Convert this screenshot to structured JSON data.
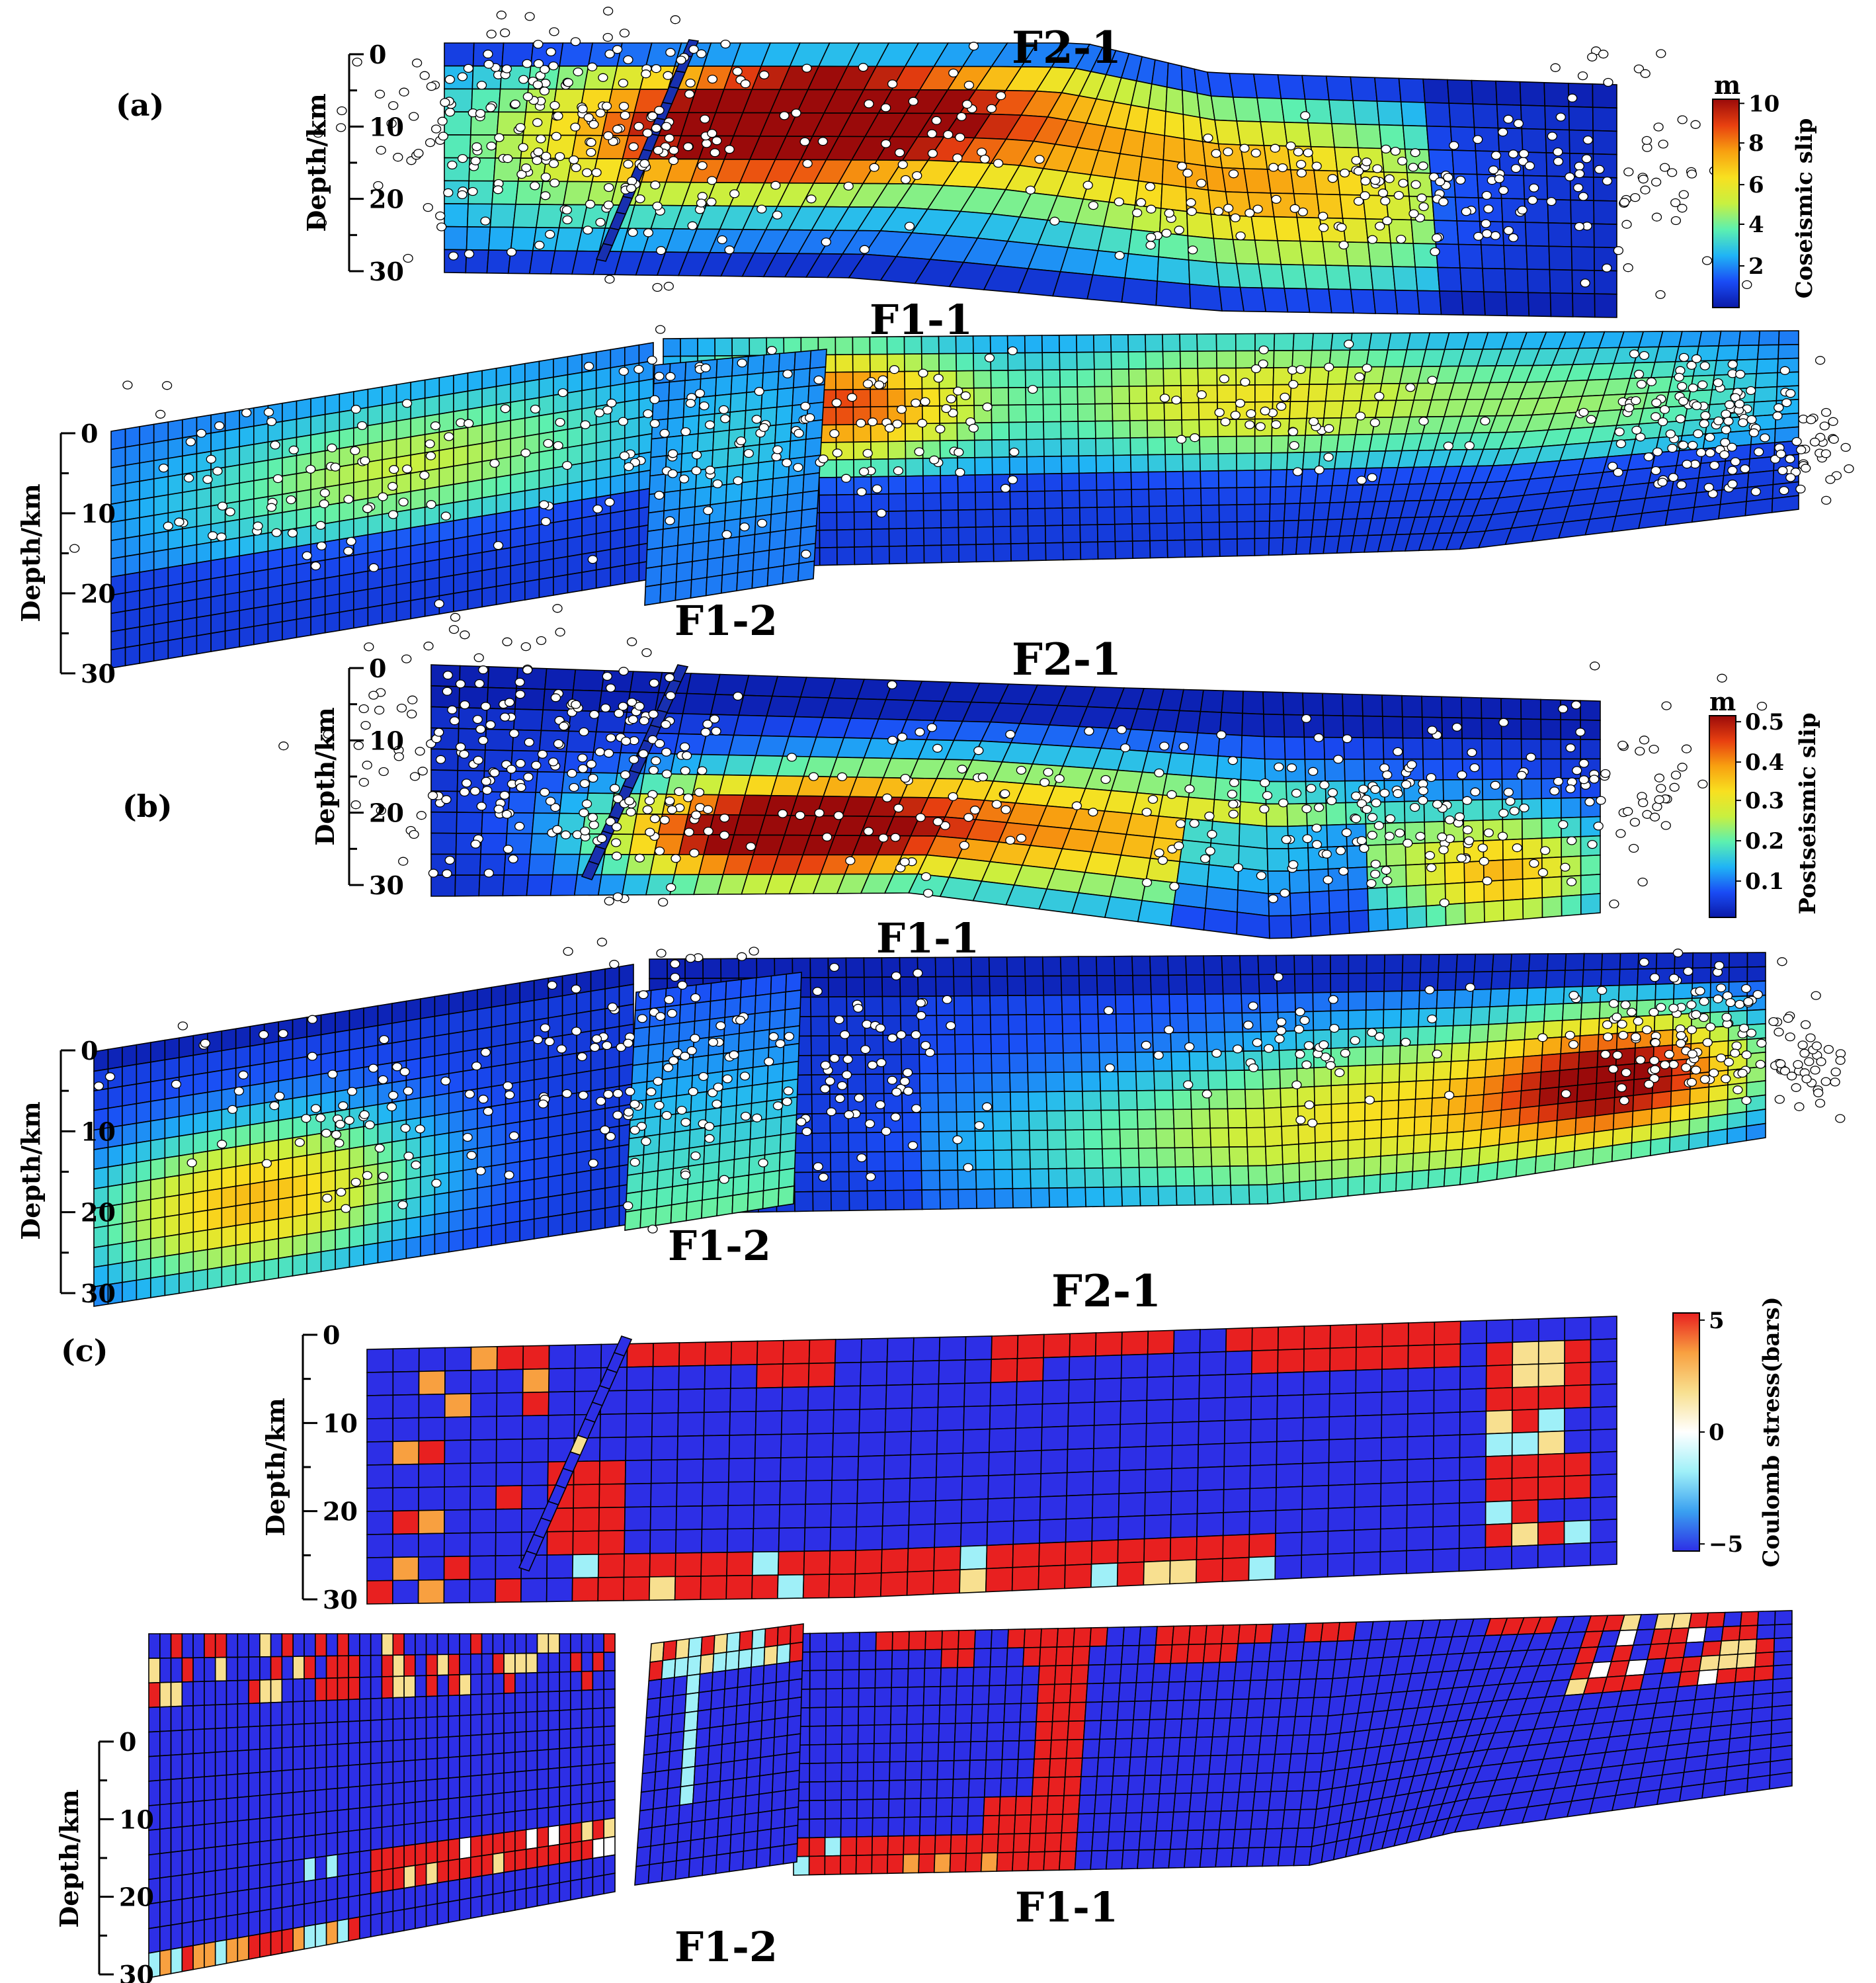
{
  "panels": {
    "a": {
      "label": "(a)",
      "colorbar_unit": "m",
      "colorbar_title": "Coseismic slip",
      "colorbar_ticks": [
        "10",
        "8",
        "6",
        "4",
        "2"
      ],
      "colormap": [
        "#0a1aa8",
        "#1a4cf5",
        "#20b4f5",
        "#5cf0b0",
        "#c8f040",
        "#f8e020",
        "#f8a010",
        "#e84010",
        "#9a0a0a"
      ]
    },
    "b": {
      "label": "(b)",
      "colorbar_unit": "m",
      "colorbar_title": "Postseismic slip",
      "colorbar_ticks": [
        "0.5",
        "0.4",
        "0.3",
        "0.2",
        "0.1"
      ],
      "colormap": [
        "#0a1aa8",
        "#1a4cf5",
        "#20b4f5",
        "#5cf0b0",
        "#c8f040",
        "#f8e020",
        "#f8a010",
        "#e84010",
        "#9a0a0a"
      ]
    },
    "c": {
      "label": "(c)",
      "colorbar_title": "Coulomb stress(bars)",
      "colorbar_ticks": [
        "5",
        "0",
        "−5"
      ],
      "colormap": [
        "#2d2fe6",
        "#3aa0f0",
        "#9ff0f8",
        "#ffffff",
        "#f8e090",
        "#f8a040",
        "#e82020"
      ]
    }
  },
  "fault_labels": {
    "f2_1": "F2-1",
    "f1_1": "F1-1",
    "f1_2": "F1-2"
  },
  "depth_axis": {
    "title": "Depth/km",
    "ticks": [
      "0",
      "10",
      "20",
      "30"
    ]
  }
}
